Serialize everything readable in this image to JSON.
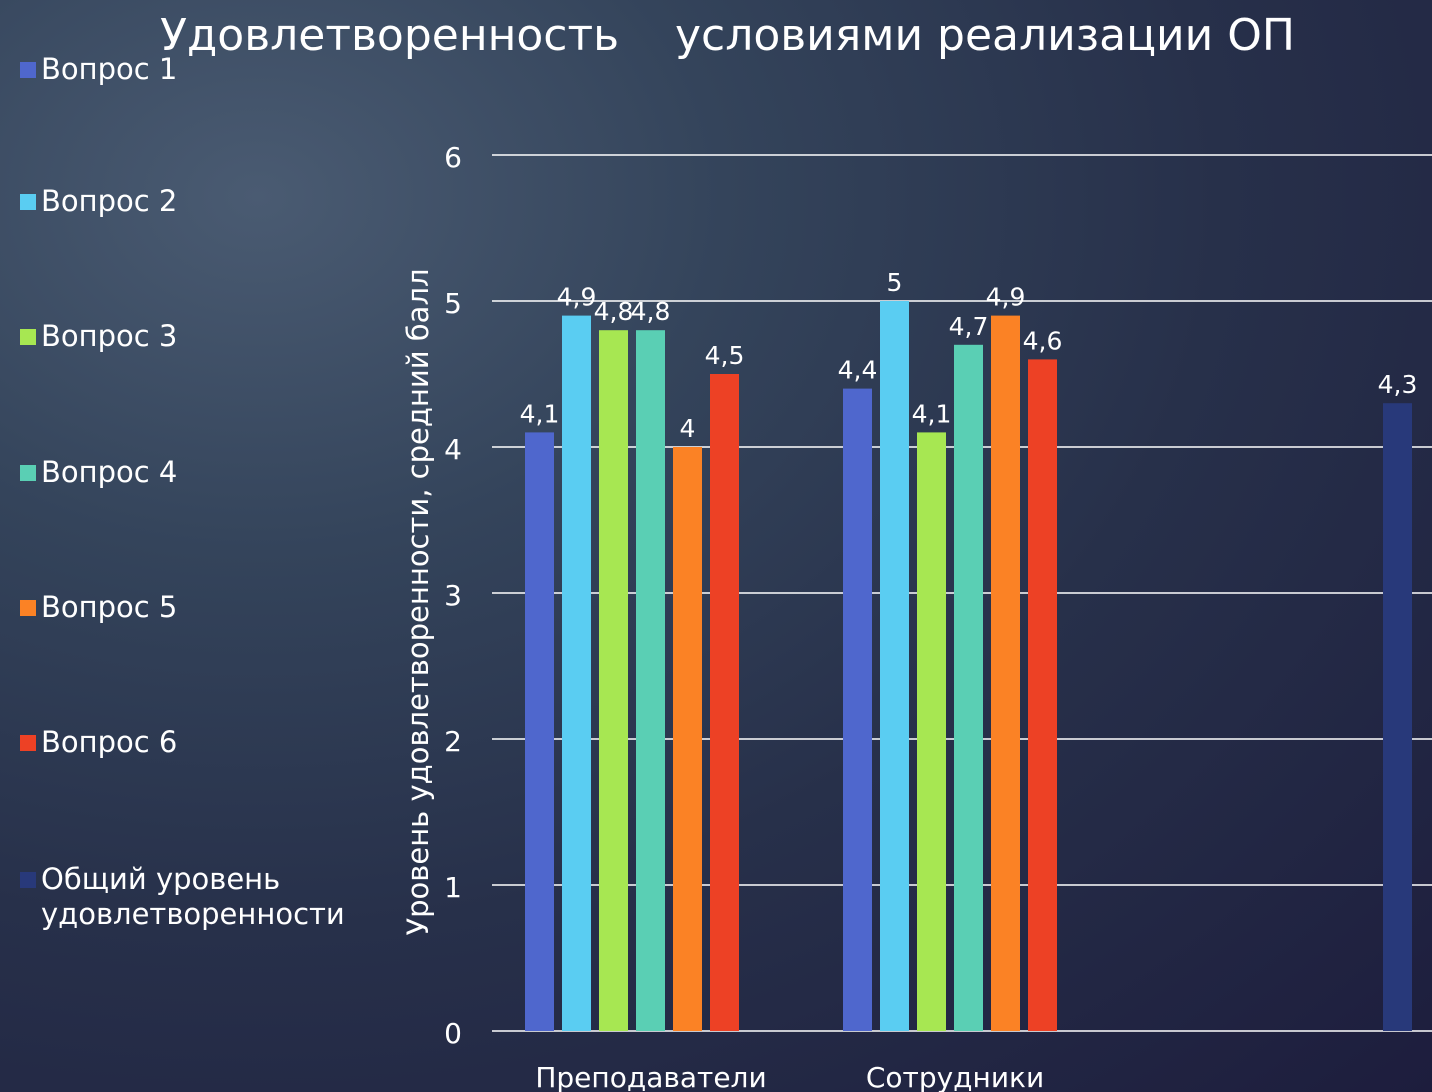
{
  "chart_data": {
    "type": "bar",
    "title": "Удовлетворенность    условиями реализации ОП",
    "ylabel": "Уровень удовлетворенности, средний балл",
    "xlabel": "",
    "ylim": [
      0,
      6
    ],
    "yticks": [
      "0",
      "1",
      "2",
      "3",
      "4",
      "5",
      "6"
    ],
    "grid": true,
    "legend_position": "left",
    "categories": [
      "Преподаватели",
      "Сотрудники",
      ""
    ],
    "series": [
      {
        "name": "Вопрос 1",
        "color": "#4F67CD",
        "values": [
          4.1,
          4.4,
          null
        ],
        "labels": [
          "4,1",
          "4,4",
          ""
        ]
      },
      {
        "name": "Вопрос 2",
        "color": "#5ACDF2",
        "values": [
          4.9,
          5,
          null
        ],
        "labels": [
          "4,9",
          "5",
          ""
        ]
      },
      {
        "name": "Вопрос 3",
        "color": "#A7E752",
        "values": [
          4.8,
          4.1,
          null
        ],
        "labels": [
          "4,8",
          "4,1",
          ""
        ]
      },
      {
        "name": "Вопрос 4",
        "color": "#5ACFB4",
        "values": [
          4.8,
          4.7,
          null
        ],
        "labels": [
          "4,8",
          "4,7",
          ""
        ]
      },
      {
        "name": "Вопрос 5",
        "color": "#FB8225",
        "values": [
          4,
          4.9,
          null
        ],
        "labels": [
          "4",
          "4,9",
          ""
        ]
      },
      {
        "name": "Вопрос 6",
        "color": "#ED4125",
        "values": [
          4.5,
          4.6,
          null
        ],
        "labels": [
          "4,5",
          "4,6",
          ""
        ]
      },
      {
        "name": "Общий уровень\nудовлетворенности",
        "color": "#28397A",
        "values": [
          null,
          null,
          4.3
        ],
        "labels": [
          "",
          "",
          "4,3"
        ]
      }
    ]
  }
}
